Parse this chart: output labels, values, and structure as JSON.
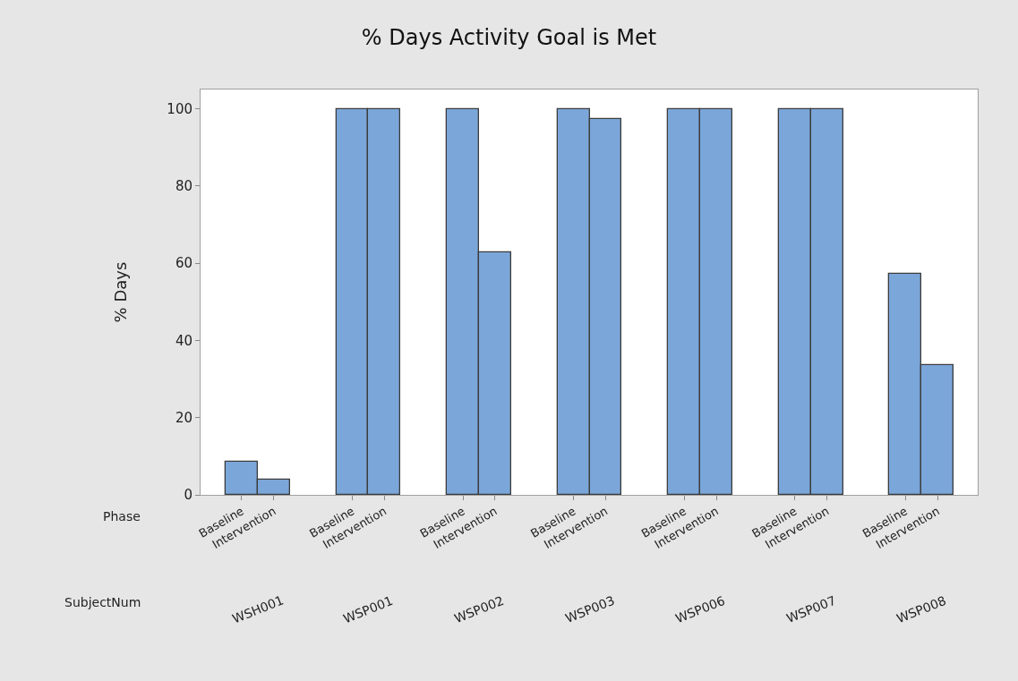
{
  "chart_data": {
    "type": "bar",
    "title": "% Days Activity Goal is Met",
    "ylabel": "% Days",
    "categories": [
      "Baseline",
      "Intervention",
      "Baseline",
      "Intervention",
      "Baseline",
      "Intervention",
      "Baseline",
      "Intervention",
      "Baseline",
      "Intervention",
      "Baseline",
      "Intervention",
      "Baseline",
      "Intervention"
    ],
    "values": [
      8.6,
      4.0,
      100,
      100,
      100,
      62.9,
      100,
      97.4,
      100,
      100,
      100,
      100,
      57.2,
      33.6
    ],
    "color": "#7ba6d9",
    "ylim": [
      0,
      105
    ],
    "yticks": [
      0,
      20,
      40,
      60,
      80,
      100
    ],
    "legend": false,
    "annotations": [
      "Phase",
      "SubjectNum",
      "WSH001",
      "WSP001",
      "WSP002",
      "WSP003",
      "WSP006",
      "WSP007",
      "WSP008"
    ]
  }
}
